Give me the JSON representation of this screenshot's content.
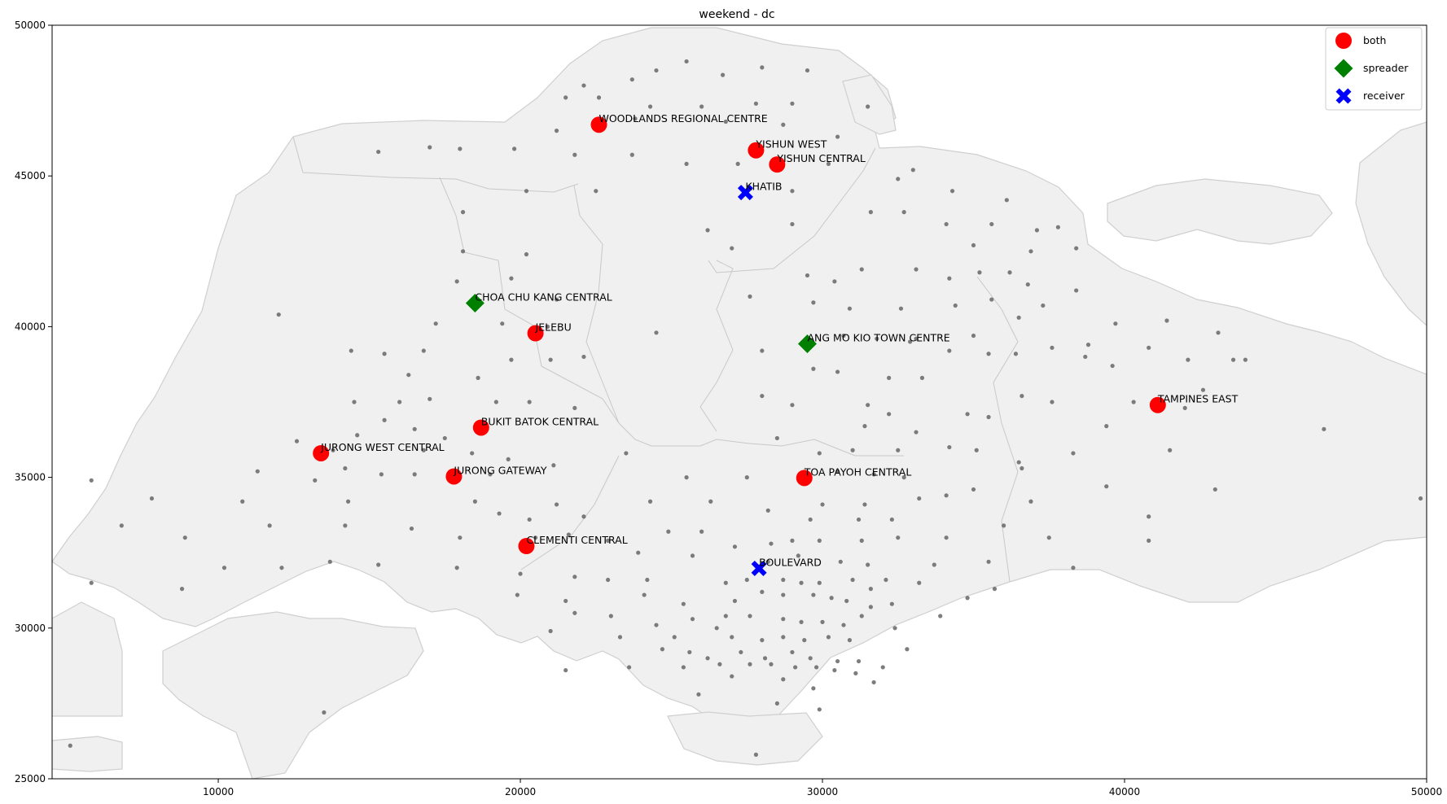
{
  "chart_data": {
    "type": "scatter",
    "title": "weekend - dc",
    "xlim": [
      4500,
      50000
    ],
    "ylim": [
      25000,
      50000
    ],
    "xticks": [
      10000,
      20000,
      30000,
      40000,
      50000
    ],
    "yticks": [
      25000,
      30000,
      35000,
      40000,
      45000,
      50000
    ],
    "xtick_labels": [
      "10000",
      "20000",
      "30000",
      "40000",
      "50000"
    ],
    "ytick_labels": [
      "25000",
      "30000",
      "35000",
      "40000",
      "45000",
      "50000"
    ],
    "grid": false,
    "legend_position": "top-right",
    "series": [
      {
        "name": "both",
        "marker": "circle",
        "color": "#ff0000",
        "points": [
          {
            "label": "WOODLANDS REGIONAL CENTRE",
            "x": 22600,
            "y": 46700
          },
          {
            "label": "YISHUN WEST",
            "x": 27800,
            "y": 45850
          },
          {
            "label": "YISHUN CENTRAL",
            "x": 28500,
            "y": 45380
          },
          {
            "label": "JELEBU",
            "x": 20500,
            "y": 39780
          },
          {
            "label": "BUKIT BATOK CENTRAL",
            "x": 18700,
            "y": 36650
          },
          {
            "label": "JURONG WEST CENTRAL",
            "x": 13400,
            "y": 35800
          },
          {
            "label": "JURONG GATEWAY",
            "x": 17800,
            "y": 35030
          },
          {
            "label": "CLEMENTI CENTRAL",
            "x": 20200,
            "y": 32720
          },
          {
            "label": "TOA PAYOH CENTRAL",
            "x": 29400,
            "y": 34980
          },
          {
            "label": "TAMPINES EAST",
            "x": 41100,
            "y": 37400
          }
        ]
      },
      {
        "name": "spreader",
        "marker": "diamond",
        "color": "#008000",
        "points": [
          {
            "label": "CHOA CHU KANG CENTRAL",
            "x": 18500,
            "y": 40780
          },
          {
            "label": "ANG MO KIO TOWN CENTRE",
            "x": 29500,
            "y": 39430
          }
        ]
      },
      {
        "name": "receiver",
        "marker": "x",
        "color": "#0000ff",
        "points": [
          {
            "label": "KHATIB",
            "x": 27450,
            "y": 44450
          },
          {
            "label": "BOULEVARD",
            "x": 27900,
            "y": 31980
          }
        ]
      }
    ],
    "background_points": {
      "color": "#666666",
      "xy": [
        [
          22100,
          48000
        ],
        [
          23700,
          48200
        ],
        [
          24500,
          48500
        ],
        [
          25500,
          48800
        ],
        [
          26700,
          48350
        ],
        [
          28000,
          48600
        ],
        [
          29500,
          48500
        ],
        [
          21500,
          47600
        ],
        [
          22600,
          47600
        ],
        [
          24300,
          47300
        ],
        [
          26000,
          47300
        ],
        [
          27800,
          47400
        ],
        [
          29000,
          47400
        ],
        [
          31500,
          47300
        ],
        [
          21200,
          46500
        ],
        [
          23800,
          46900
        ],
        [
          26800,
          46800
        ],
        [
          28700,
          46700
        ],
        [
          30500,
          46300
        ],
        [
          15300,
          45800
        ],
        [
          17000,
          45950
        ],
        [
          18000,
          45900
        ],
        [
          19800,
          45900
        ],
        [
          21800,
          45700
        ],
        [
          23700,
          45700
        ],
        [
          25500,
          45400
        ],
        [
          27200,
          45400
        ],
        [
          30200,
          45400
        ],
        [
          33000,
          45200
        ],
        [
          20200,
          44500
        ],
        [
          22500,
          44500
        ],
        [
          29000,
          44500
        ],
        [
          32500,
          44900
        ],
        [
          34300,
          44500
        ],
        [
          36100,
          44200
        ],
        [
          18100,
          43800
        ],
        [
          31600,
          43800
        ],
        [
          32700,
          43800
        ],
        [
          35600,
          43400
        ],
        [
          37100,
          43200
        ],
        [
          37800,
          43300
        ],
        [
          26200,
          43200
        ],
        [
          27000,
          42600
        ],
        [
          29000,
          43400
        ],
        [
          34100,
          43400
        ],
        [
          18100,
          42500
        ],
        [
          20200,
          42400
        ],
        [
          35000,
          42700
        ],
        [
          36900,
          42500
        ],
        [
          38400,
          42600
        ],
        [
          31300,
          41900
        ],
        [
          33100,
          41900
        ],
        [
          35200,
          41800
        ],
        [
          17900,
          41500
        ],
        [
          19700,
          41600
        ],
        [
          29500,
          41700
        ],
        [
          30400,
          41500
        ],
        [
          34200,
          41600
        ],
        [
          36200,
          41800
        ],
        [
          36800,
          41400
        ],
        [
          12000,
          40400
        ],
        [
          21200,
          40900
        ],
        [
          27600,
          41000
        ],
        [
          29700,
          40800
        ],
        [
          30900,
          40600
        ],
        [
          32600,
          40600
        ],
        [
          34400,
          40700
        ],
        [
          35600,
          40900
        ],
        [
          37300,
          40700
        ],
        [
          17200,
          40100
        ],
        [
          19400,
          40100
        ],
        [
          20900,
          40000
        ],
        [
          24500,
          39800
        ],
        [
          30700,
          39700
        ],
        [
          31800,
          39600
        ],
        [
          33100,
          39600
        ],
        [
          35000,
          39700
        ],
        [
          36500,
          40300
        ],
        [
          38400,
          41200
        ],
        [
          39700,
          40100
        ],
        [
          41400,
          40200
        ],
        [
          43100,
          39800
        ],
        [
          14400,
          39200
        ],
        [
          15500,
          39100
        ],
        [
          16800,
          39200
        ],
        [
          22100,
          39000
        ],
        [
          28000,
          39200
        ],
        [
          32900,
          39500
        ],
        [
          34200,
          39200
        ],
        [
          35500,
          39100
        ],
        [
          36400,
          39100
        ],
        [
          37600,
          39300
        ],
        [
          38800,
          39400
        ],
        [
          40800,
          39300
        ],
        [
          42100,
          38900
        ],
        [
          43600,
          38900
        ],
        [
          44000,
          38900
        ],
        [
          19700,
          38900
        ],
        [
          21000,
          38900
        ],
        [
          16300,
          38400
        ],
        [
          18600,
          38300
        ],
        [
          29700,
          38600
        ],
        [
          30500,
          38500
        ],
        [
          32200,
          38300
        ],
        [
          33300,
          38300
        ],
        [
          38700,
          39000
        ],
        [
          39600,
          38700
        ],
        [
          42600,
          37900
        ],
        [
          14500,
          37500
        ],
        [
          16000,
          37500
        ],
        [
          17000,
          37600
        ],
        [
          19200,
          37500
        ],
        [
          20300,
          37500
        ],
        [
          21800,
          37300
        ],
        [
          28000,
          37700
        ],
        [
          29000,
          37400
        ],
        [
          31500,
          37400
        ],
        [
          32200,
          37100
        ],
        [
          34800,
          37100
        ],
        [
          36600,
          37700
        ],
        [
          37600,
          37500
        ],
        [
          40300,
          37500
        ],
        [
          42000,
          37300
        ],
        [
          14600,
          36400
        ],
        [
          15500,
          36900
        ],
        [
          16500,
          36600
        ],
        [
          17500,
          36300
        ],
        [
          28500,
          36300
        ],
        [
          31400,
          36700
        ],
        [
          33100,
          36500
        ],
        [
          34200,
          36000
        ],
        [
          35500,
          37000
        ],
        [
          39400,
          36700
        ],
        [
          46600,
          36600
        ],
        [
          12600,
          36200
        ],
        [
          13800,
          35900
        ],
        [
          16800,
          35900
        ],
        [
          18400,
          35800
        ],
        [
          19600,
          35600
        ],
        [
          23500,
          35800
        ],
        [
          29900,
          35800
        ],
        [
          31000,
          35900
        ],
        [
          32500,
          35900
        ],
        [
          35100,
          35900
        ],
        [
          36500,
          35500
        ],
        [
          38300,
          35800
        ],
        [
          41500,
          35900
        ],
        [
          11300,
          35200
        ],
        [
          14200,
          35300
        ],
        [
          15400,
          35100
        ],
        [
          16500,
          35100
        ],
        [
          19000,
          35100
        ],
        [
          21100,
          35400
        ],
        [
          25500,
          35000
        ],
        [
          27500,
          35000
        ],
        [
          30500,
          35200
        ],
        [
          31700,
          35100
        ],
        [
          32700,
          35000
        ],
        [
          35000,
          34600
        ],
        [
          36600,
          35300
        ],
        [
          39400,
          34700
        ],
        [
          43000,
          34600
        ],
        [
          5800,
          34900
        ],
        [
          7800,
          34300
        ],
        [
          10800,
          34200
        ],
        [
          13200,
          34900
        ],
        [
          14300,
          34200
        ],
        [
          18500,
          34200
        ],
        [
          21200,
          34100
        ],
        [
          24300,
          34200
        ],
        [
          26300,
          34200
        ],
        [
          30000,
          34100
        ],
        [
          31400,
          34100
        ],
        [
          33200,
          34300
        ],
        [
          34100,
          34400
        ],
        [
          36900,
          34200
        ],
        [
          19300,
          33800
        ],
        [
          20300,
          33600
        ],
        [
          22100,
          33700
        ],
        [
          28200,
          33900
        ],
        [
          29600,
          33600
        ],
        [
          31200,
          33600
        ],
        [
          32300,
          33600
        ],
        [
          36000,
          33400
        ],
        [
          40800,
          33700
        ],
        [
          6800,
          33400
        ],
        [
          11700,
          33400
        ],
        [
          14200,
          33400
        ],
        [
          16400,
          33300
        ],
        [
          18000,
          33000
        ],
        [
          20500,
          33000
        ],
        [
          21600,
          33100
        ],
        [
          24900,
          33200
        ],
        [
          26000,
          33200
        ],
        [
          28300,
          32800
        ],
        [
          29000,
          32900
        ],
        [
          29900,
          32900
        ],
        [
          31300,
          32900
        ],
        [
          32500,
          33000
        ],
        [
          34100,
          33000
        ],
        [
          37500,
          33000
        ],
        [
          40800,
          32900
        ],
        [
          8900,
          33000
        ],
        [
          22900,
          32900
        ],
        [
          23900,
          32500
        ],
        [
          25700,
          32400
        ],
        [
          27100,
          32700
        ],
        [
          28200,
          32200
        ],
        [
          29200,
          32400
        ],
        [
          30600,
          32200
        ],
        [
          31500,
          32100
        ],
        [
          33700,
          32100
        ],
        [
          35500,
          32200
        ],
        [
          38300,
          32000
        ],
        [
          10200,
          32000
        ],
        [
          12100,
          32000
        ],
        [
          13700,
          32200
        ],
        [
          15300,
          32100
        ],
        [
          17900,
          32000
        ],
        [
          20000,
          31800
        ],
        [
          21800,
          31700
        ],
        [
          22900,
          31600
        ],
        [
          24200,
          31600
        ],
        [
          26800,
          31500
        ],
        [
          27500,
          31600
        ],
        [
          28700,
          31600
        ],
        [
          29300,
          31500
        ],
        [
          29900,
          31500
        ],
        [
          31000,
          31600
        ],
        [
          31600,
          31300
        ],
        [
          32100,
          31600
        ],
        [
          33200,
          31500
        ],
        [
          35700,
          31300
        ],
        [
          5800,
          31500
        ],
        [
          8800,
          31300
        ],
        [
          19900,
          31100
        ],
        [
          21500,
          30900
        ],
        [
          24100,
          31100
        ],
        [
          25400,
          30800
        ],
        [
          27100,
          30900
        ],
        [
          28000,
          31200
        ],
        [
          28700,
          31100
        ],
        [
          29700,
          31100
        ],
        [
          30300,
          31000
        ],
        [
          30800,
          30900
        ],
        [
          31600,
          30700
        ],
        [
          32300,
          30800
        ],
        [
          34800,
          31000
        ],
        [
          21800,
          30500
        ],
        [
          23000,
          30400
        ],
        [
          24500,
          30100
        ],
        [
          25700,
          30300
        ],
        [
          26800,
          30400
        ],
        [
          27600,
          30400
        ],
        [
          28700,
          30300
        ],
        [
          29300,
          30200
        ],
        [
          30000,
          30200
        ],
        [
          30700,
          30100
        ],
        [
          31300,
          30400
        ],
        [
          21000,
          29900
        ],
        [
          23300,
          29700
        ],
        [
          25100,
          29700
        ],
        [
          26500,
          30000
        ],
        [
          27000,
          29700
        ],
        [
          28000,
          29600
        ],
        [
          28700,
          29700
        ],
        [
          29400,
          29600
        ],
        [
          30200,
          29700
        ],
        [
          30900,
          29600
        ],
        [
          32400,
          30000
        ],
        [
          33900,
          30400
        ],
        [
          24700,
          29300
        ],
        [
          25600,
          29200
        ],
        [
          26200,
          29000
        ],
        [
          27300,
          29200
        ],
        [
          28100,
          29000
        ],
        [
          29000,
          29200
        ],
        [
          29600,
          29000
        ],
        [
          30500,
          28900
        ],
        [
          31200,
          28900
        ],
        [
          32800,
          29300
        ],
        [
          23600,
          28700
        ],
        [
          25400,
          28700
        ],
        [
          26600,
          28800
        ],
        [
          27600,
          28800
        ],
        [
          28300,
          28800
        ],
        [
          29100,
          28700
        ],
        [
          29800,
          28700
        ],
        [
          30400,
          28600
        ],
        [
          31100,
          28500
        ],
        [
          32000,
          28700
        ],
        [
          21500,
          28600
        ],
        [
          27000,
          28400
        ],
        [
          28700,
          28300
        ],
        [
          29700,
          28000
        ],
        [
          31700,
          28200
        ],
        [
          25900,
          27800
        ],
        [
          28500,
          27500
        ],
        [
          29900,
          27300
        ],
        [
          27800,
          25800
        ],
        [
          13500,
          27200
        ],
        [
          5100,
          26100
        ],
        [
          49800,
          34300
        ]
      ]
    },
    "legend": [
      {
        "label": "both",
        "marker": "circle",
        "color": "#ff0000"
      },
      {
        "label": "spreader",
        "marker": "diamond",
        "color": "#008000"
      },
      {
        "label": "receiver",
        "marker": "x",
        "color": "#0000ff"
      }
    ]
  }
}
